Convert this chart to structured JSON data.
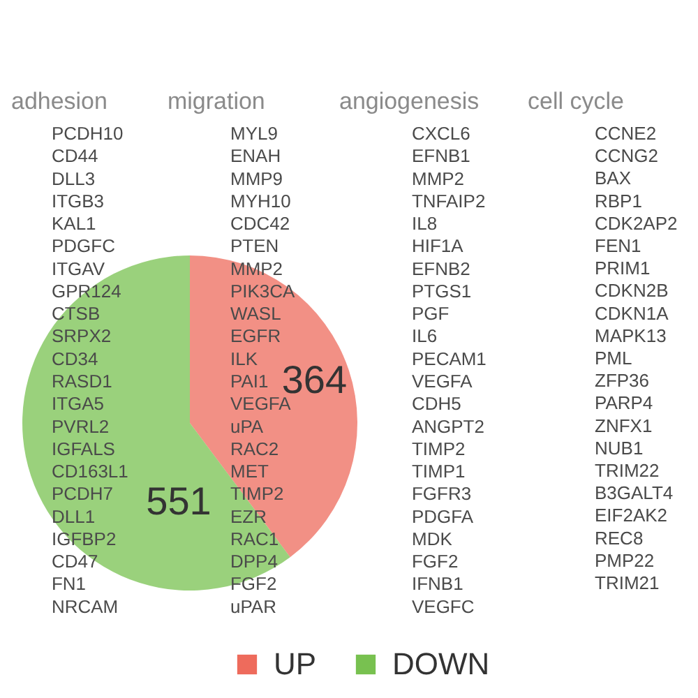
{
  "chart_data": [
    {
      "type": "other",
      "title": "adhesion",
      "annotations": [
        "PCDH10",
        "CD44",
        "DLL3",
        "ITGB3",
        "KAL1",
        "PDGFC",
        "ITGAV",
        "GPR124",
        "CTSB",
        "SRPX2",
        "CD34",
        "RASD1",
        "ITGA5",
        "PVRL2",
        "IGFALS",
        "CD163L1",
        "PCDH7",
        "DLL1",
        "IGFBP2",
        "CD47",
        "FN1",
        "NRCAM"
      ]
    },
    {
      "type": "other",
      "title": "migration",
      "annotations": [
        "MYL9",
        "ENAH",
        "MMP9",
        "MYH10",
        "CDC42",
        "PTEN",
        "MMP2",
        "PIK3CA",
        "WASL",
        "EGFR",
        "ILK",
        "PAI1",
        "VEGFA",
        "uPA",
        "RAC2",
        "MET",
        "TIMP2",
        "EZR",
        "RAC1",
        "DPP4",
        "FGF2",
        "uPAR"
      ]
    },
    {
      "type": "other",
      "title": "angiogenesis",
      "annotations": [
        "CXCL6",
        "EFNB1",
        "MMP2",
        "TNFAIP2",
        "IL8",
        "HIF1A",
        "EFNB2",
        "PTGS1",
        "PGF",
        "IL6",
        "PECAM1",
        "VEGFA",
        "CDH5",
        "ANGPT2",
        "TIMP2",
        "TIMP1",
        "FGFR3",
        "PDGFA",
        "MDK",
        "FGF2",
        "IFNB1",
        "VEGFC"
      ]
    },
    {
      "type": "other",
      "title": "cell cycle",
      "annotations": [
        "CCNE2",
        "CCNG2",
        "BAX",
        "RBP1",
        "CDK2AP2",
        "FEN1",
        "PRIM1",
        "CDKN2B",
        "CDKN1A",
        "MAPK13",
        "PML",
        "ZFP36",
        "PARP4",
        "ZNFX1",
        "NUB1",
        "TRIM22",
        "B3GALT4",
        "EIF2AK2",
        "REC8",
        "PMP22",
        "TRIM21"
      ]
    },
    {
      "type": "pie",
      "categories": [
        "UP",
        "DOWN"
      ],
      "values": [
        364,
        551
      ],
      "colors": [
        "#ee6b5c",
        "#78c150"
      ],
      "data_labels": true,
      "legend": "bottom"
    }
  ]
}
